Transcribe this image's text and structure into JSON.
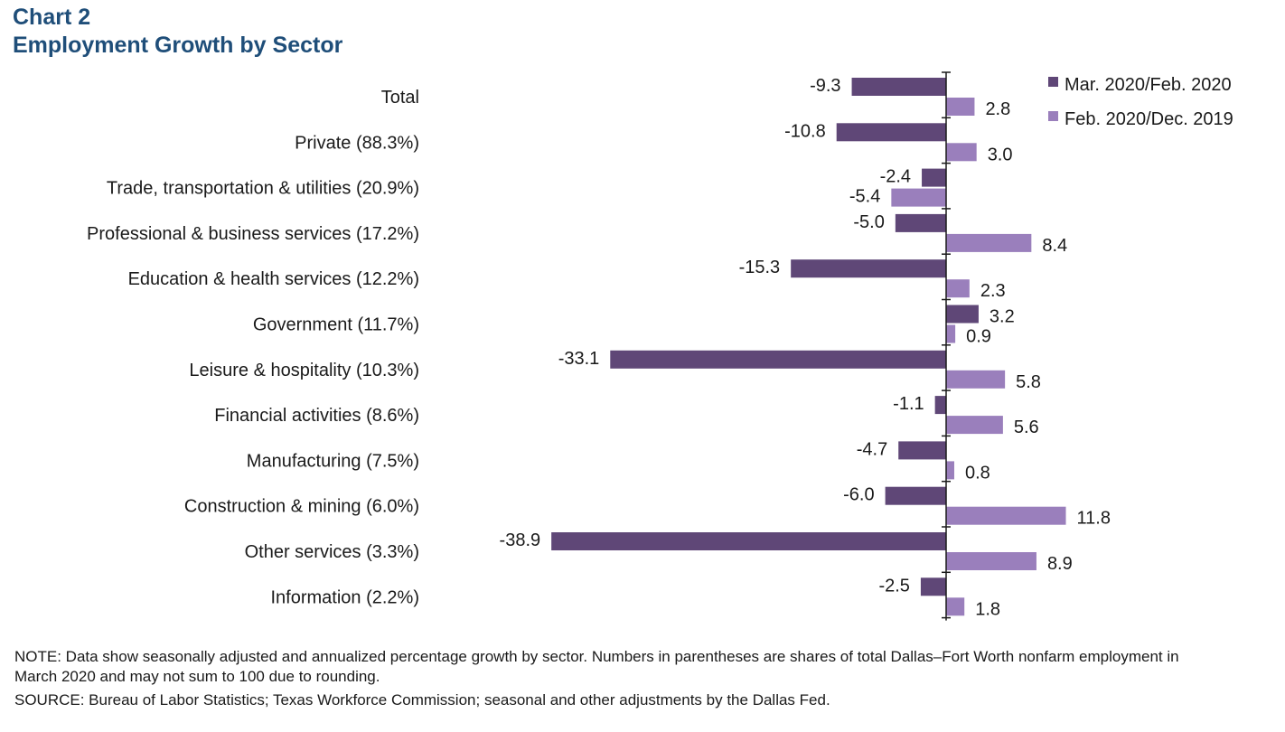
{
  "header": {
    "chart_label": "Chart 2",
    "title": "Employment Growth by Sector"
  },
  "colors": {
    "series1": "#5f4777",
    "series2": "#9a7fbc",
    "axis": "#1a1a1a",
    "title": "#1f4e79"
  },
  "chart_data": {
    "type": "bar",
    "orientation": "horizontal",
    "title": "Employment Growth by Sector",
    "categories": [
      "Total",
      "Private (88.3%)",
      "Trade, transportation & utilities (20.9%)",
      "Professional & business services (17.2%)",
      "Education & health services (12.2%)",
      "Government (11.7%)",
      "Leisure & hospitality (10.3%)",
      "Financial activities (8.6%)",
      "Manufacturing (7.5%)",
      "Construction & mining (6.0%)",
      "Other services (3.3%)",
      "Information (2.2%)"
    ],
    "series": [
      {
        "name": "Mar. 2020/Feb. 2020",
        "values": [
          -9.3,
          -10.8,
          -2.4,
          -5.0,
          -15.3,
          3.2,
          -33.1,
          -1.1,
          -4.7,
          -6.0,
          -38.9,
          -2.5
        ],
        "labels": [
          "-9.3",
          "-10.8",
          "-2.4",
          "-5.0",
          "-15.3",
          "3.2",
          "-33.1",
          "-1.1",
          "-4.7",
          "-6.0",
          "-38.9",
          "-2.5"
        ]
      },
      {
        "name": "Feb. 2020/Dec. 2019",
        "values": [
          2.8,
          3.0,
          -5.4,
          8.4,
          2.3,
          0.9,
          5.8,
          5.6,
          0.8,
          11.8,
          8.9,
          1.8
        ],
        "labels": [
          "2.8",
          "3.0",
          "-5.4",
          "8.4",
          "2.3",
          "0.9",
          "5.8",
          "5.6",
          "0.8",
          "11.8",
          "8.9",
          "1.8"
        ]
      }
    ],
    "xlim": [
      -42,
      12
    ],
    "legend_position": "top-right",
    "grid": false
  },
  "notes": {
    "note": "NOTE: Data show seasonally adjusted and annualized  percentage growth by sector. Numbers in parentheses are shares of total Dallas–Fort Worth nonfarm employment in March 2020 and may not sum to 100 due to rounding.",
    "source": "SOURCE: Bureau of Labor Statistics; Texas Workforce Commission;  seasonal and other adjustments by the Dallas Fed."
  }
}
